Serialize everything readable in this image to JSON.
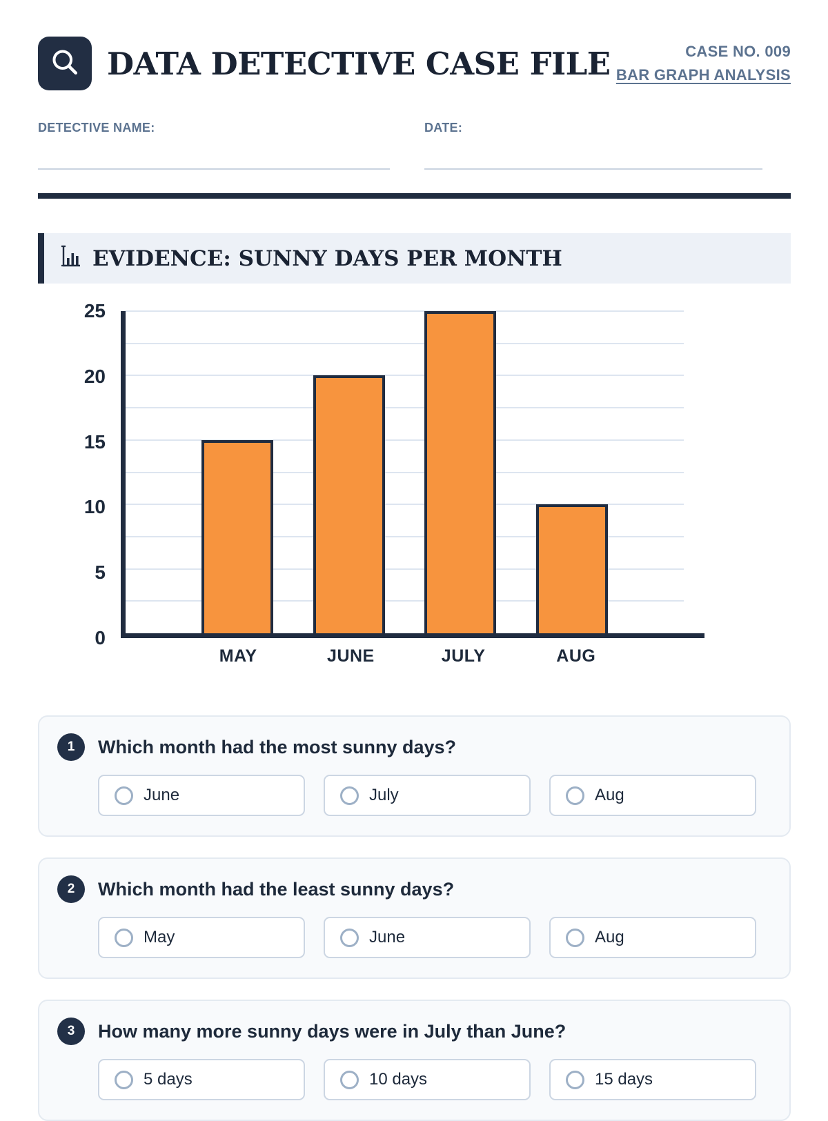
{
  "header": {
    "title": "DATA DETECTIVE CASE FILE",
    "case_no": "CASE NO. 009",
    "subtitle": "BAR GRAPH ANALYSIS",
    "logo_icon": "magnifier-icon"
  },
  "fields": {
    "detective_name_label": "DETECTIVE NAME:",
    "detective_name_value": "",
    "date_label": "DATE:",
    "date_value": ""
  },
  "evidence": {
    "icon": "bar-chart-icon",
    "heading": "EVIDENCE: SUNNY DAYS PER MONTH"
  },
  "chart_data": {
    "type": "bar",
    "title": "EVIDENCE: SUNNY DAYS PER MONTH",
    "categories": [
      "MAY",
      "JUNE",
      "JULY",
      "AUG"
    ],
    "values": [
      15,
      20,
      25,
      10
    ],
    "xlabel": "",
    "ylabel": "",
    "ylim": [
      0,
      25
    ],
    "yticks": [
      0,
      5,
      10,
      15,
      20,
      25
    ],
    "gridline_step": 2.5,
    "grid": true,
    "legend": false,
    "bar_color": "#f7943e",
    "bar_border_color": "#202c40"
  },
  "questions": [
    {
      "number": "1",
      "segments": [
        {
          "text": "Which month had the ",
          "bold": false
        },
        {
          "text": "most",
          "bold": true
        },
        {
          "text": " sunny days?",
          "bold": false
        }
      ],
      "options": [
        "June",
        "July",
        "Aug"
      ]
    },
    {
      "number": "2",
      "segments": [
        {
          "text": "Which month had the ",
          "bold": false
        },
        {
          "text": "least",
          "bold": true
        },
        {
          "text": " sunny days?",
          "bold": false
        }
      ],
      "options": [
        "May",
        "June",
        "Aug"
      ]
    },
    {
      "number": "3",
      "segments": [
        {
          "text": "How many more sunny days were in ",
          "bold": false
        },
        {
          "text": "July",
          "bold": true
        },
        {
          "text": " than ",
          "bold": false
        },
        {
          "text": "June",
          "bold": true
        },
        {
          "text": "?",
          "bold": false
        }
      ],
      "options": [
        "5 days",
        "10 days",
        "15 days"
      ]
    }
  ],
  "colors": {
    "navy": "#202c40",
    "orange": "#f7943e",
    "slate": "#5c7390",
    "evidence_bg": "#edf1f7",
    "card_bg": "#f8fafc",
    "gridline": "#dde5f0"
  }
}
